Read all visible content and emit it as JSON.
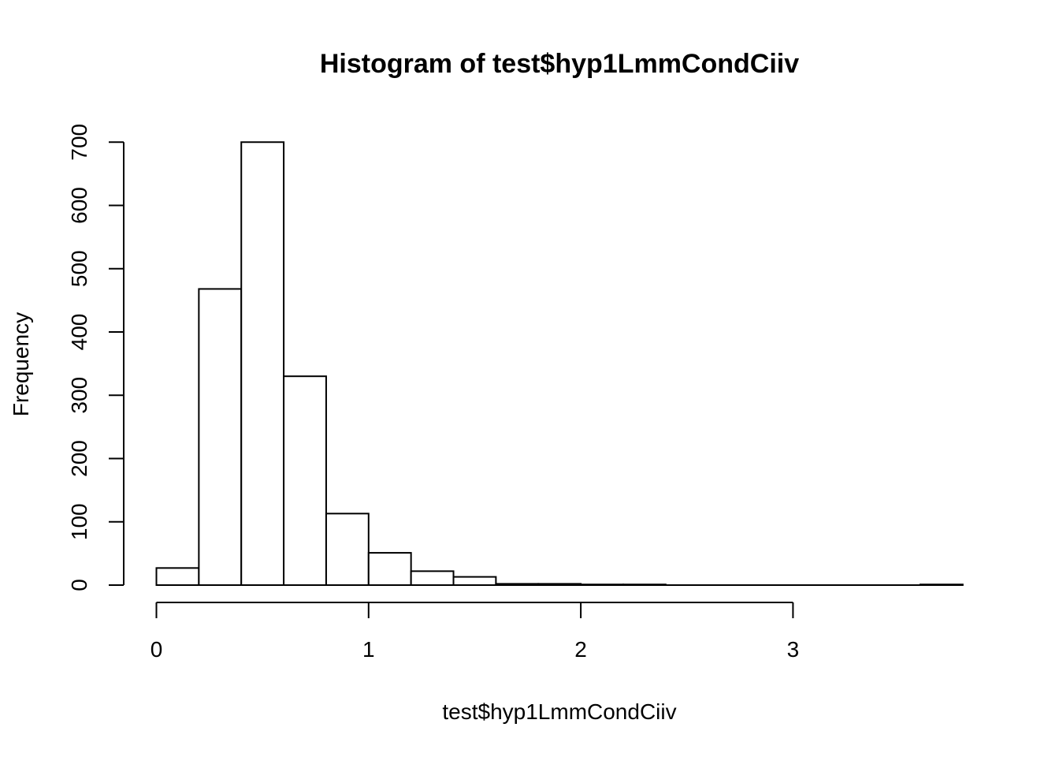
{
  "chart_data": {
    "type": "bar",
    "title": "Histogram of test$hyp1LmmCondCiiv",
    "xlabel": "test$hyp1LmmCondCiiv",
    "ylabel": "Frequency",
    "bins": [
      {
        "x0": 0.0,
        "x1": 0.2,
        "count": 27
      },
      {
        "x0": 0.2,
        "x1": 0.4,
        "count": 468
      },
      {
        "x0": 0.4,
        "x1": 0.6,
        "count": 700
      },
      {
        "x0": 0.6,
        "x1": 0.8,
        "count": 330
      },
      {
        "x0": 0.8,
        "x1": 1.0,
        "count": 113
      },
      {
        "x0": 1.0,
        "x1": 1.2,
        "count": 51
      },
      {
        "x0": 1.2,
        "x1": 1.4,
        "count": 22
      },
      {
        "x0": 1.4,
        "x1": 1.6,
        "count": 13
      },
      {
        "x0": 1.6,
        "x1": 1.8,
        "count": 2
      },
      {
        "x0": 1.8,
        "x1": 2.0,
        "count": 2
      },
      {
        "x0": 2.0,
        "x1": 2.2,
        "count": 1
      },
      {
        "x0": 2.2,
        "x1": 2.4,
        "count": 1
      },
      {
        "x0": 2.4,
        "x1": 2.6,
        "count": 0
      },
      {
        "x0": 2.6,
        "x1": 2.8,
        "count": 0
      },
      {
        "x0": 2.8,
        "x1": 3.0,
        "count": 0
      },
      {
        "x0": 3.0,
        "x1": 3.2,
        "count": 0
      },
      {
        "x0": 3.2,
        "x1": 3.4,
        "count": 0
      },
      {
        "x0": 3.4,
        "x1": 3.6,
        "count": 0
      },
      {
        "x0": 3.6,
        "x1": 3.8,
        "count": 1
      }
    ],
    "x_ticks": [
      0,
      1,
      2,
      3
    ],
    "y_ticks": [
      0,
      100,
      200,
      300,
      400,
      500,
      600,
      700
    ],
    "xlim": [
      0,
      3.8
    ],
    "ylim": [
      0,
      700
    ],
    "grid": false,
    "bar_fill": "#ffffff",
    "bar_stroke": "#000000"
  }
}
